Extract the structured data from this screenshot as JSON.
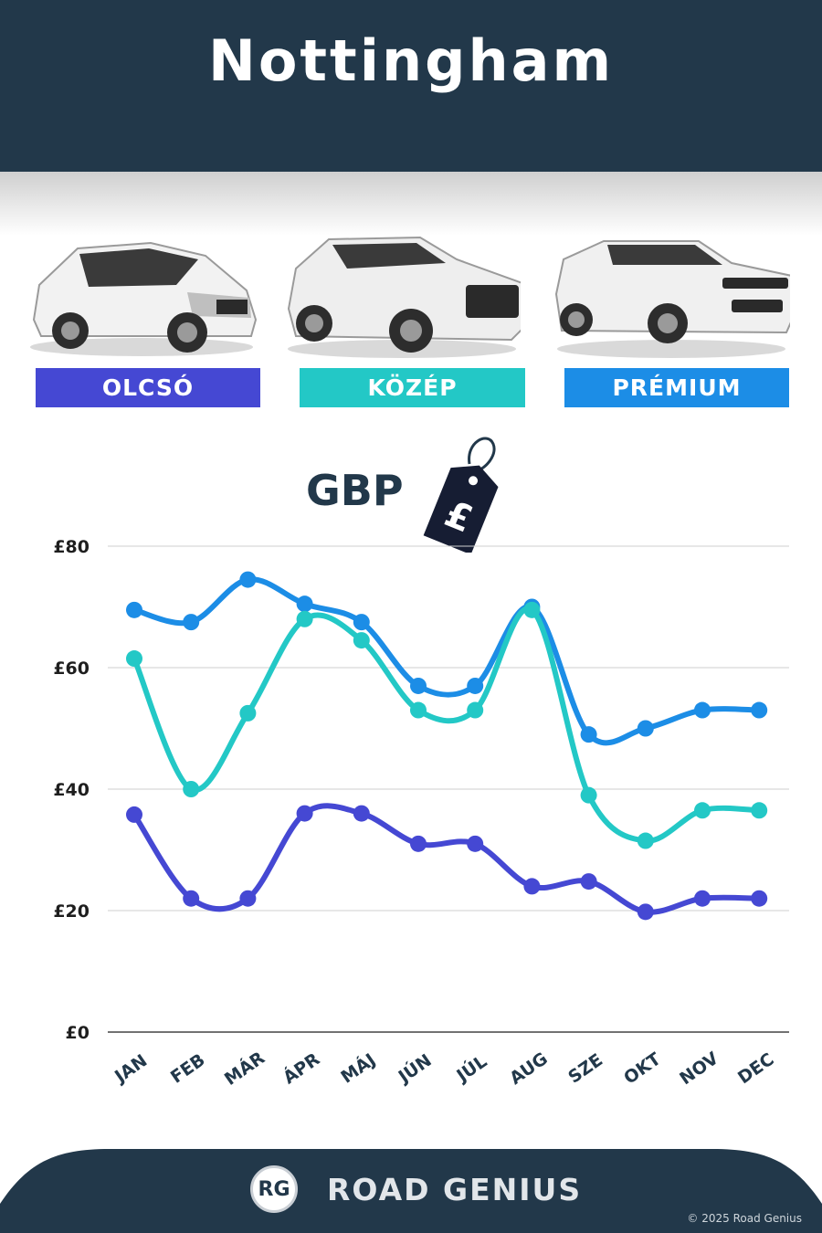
{
  "header": {
    "title": "Nottingham"
  },
  "categories": [
    {
      "label": "OLCSÓ",
      "color": "#4548d3",
      "car_icon": "hatchback-car-icon"
    },
    {
      "label": "KÖZÉP",
      "color": "#23c8c6",
      "car_icon": "suv-car-icon"
    },
    {
      "label": "PRÉMIUM",
      "color": "#1c8de6",
      "car_icon": "premium-suv-car-icon"
    }
  ],
  "currency": {
    "label": "GBP",
    "symbol": "£"
  },
  "chart_data": {
    "type": "line",
    "categories": [
      "JAN",
      "FEB",
      "MÁR",
      "ÁPR",
      "MÁJ",
      "JÚN",
      "JÚL",
      "AUG",
      "SZE",
      "OKT",
      "NOV",
      "DEC"
    ],
    "y_ticks": [
      "£0",
      "£20",
      "£40",
      "£60",
      "£80"
    ],
    "ylim": [
      0,
      80
    ],
    "grid": true,
    "series": [
      {
        "name": "PRÉMIUM",
        "color": "#1c8de6",
        "values": [
          69.5,
          67.5,
          74.5,
          70.5,
          67.5,
          57,
          57,
          70,
          49,
          50,
          53,
          53
        ]
      },
      {
        "name": "KÖZÉP",
        "color": "#23c8c6",
        "values": [
          61.5,
          40,
          52.5,
          68,
          64.5,
          53,
          53,
          69.5,
          39,
          31.5,
          36.5,
          36.5
        ]
      },
      {
        "name": "OLCSÓ",
        "color": "#4548d3",
        "values": [
          35.8,
          22,
          22,
          36,
          36,
          31,
          31,
          24,
          24.8,
          19.8,
          22,
          22
        ]
      }
    ]
  },
  "footer": {
    "logo_text": "RG",
    "brand": "ROAD GENIUS",
    "copyright": "© 2025 Road Genius"
  }
}
